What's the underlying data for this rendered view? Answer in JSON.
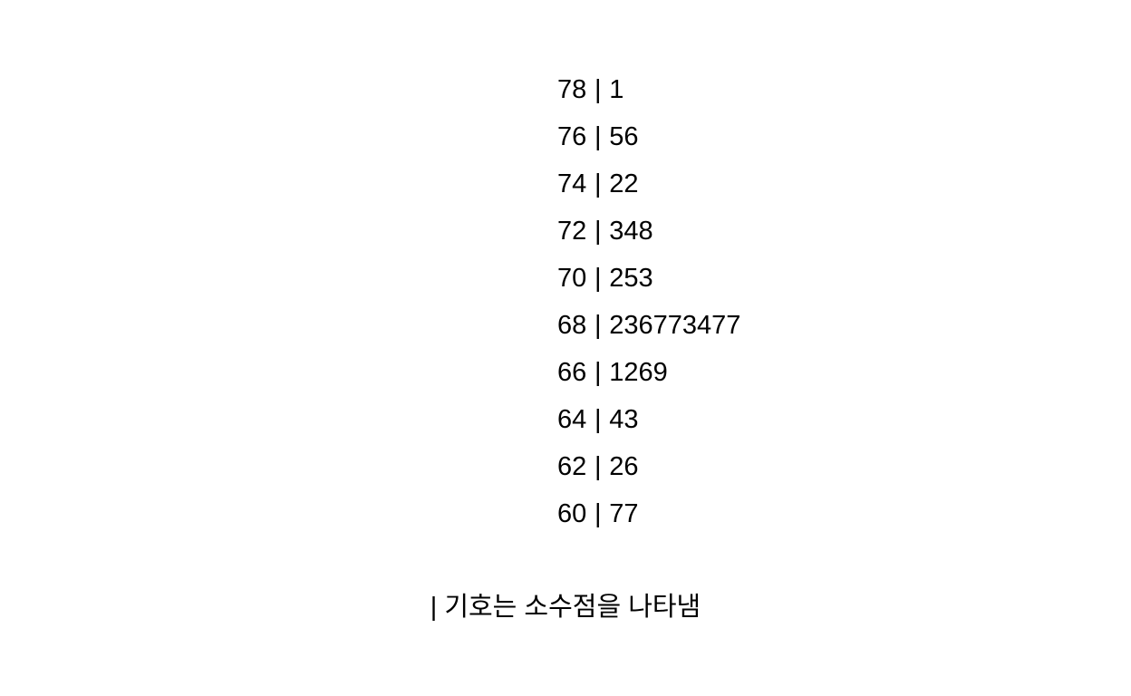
{
  "chart_data": {
    "type": "stem-and-leaf",
    "rows": [
      {
        "stem": "78",
        "leaves": "1"
      },
      {
        "stem": "76",
        "leaves": "56"
      },
      {
        "stem": "74",
        "leaves": "22"
      },
      {
        "stem": "72",
        "leaves": "348"
      },
      {
        "stem": "70",
        "leaves": "253"
      },
      {
        "stem": "68",
        "leaves": "236773477"
      },
      {
        "stem": "66",
        "leaves": "1269"
      },
      {
        "stem": "64",
        "leaves": "43"
      },
      {
        "stem": "62",
        "leaves": "26"
      },
      {
        "stem": "60",
        "leaves": "77"
      }
    ],
    "separator": "|",
    "note": "| 기호는 소수점을 나타냄"
  }
}
